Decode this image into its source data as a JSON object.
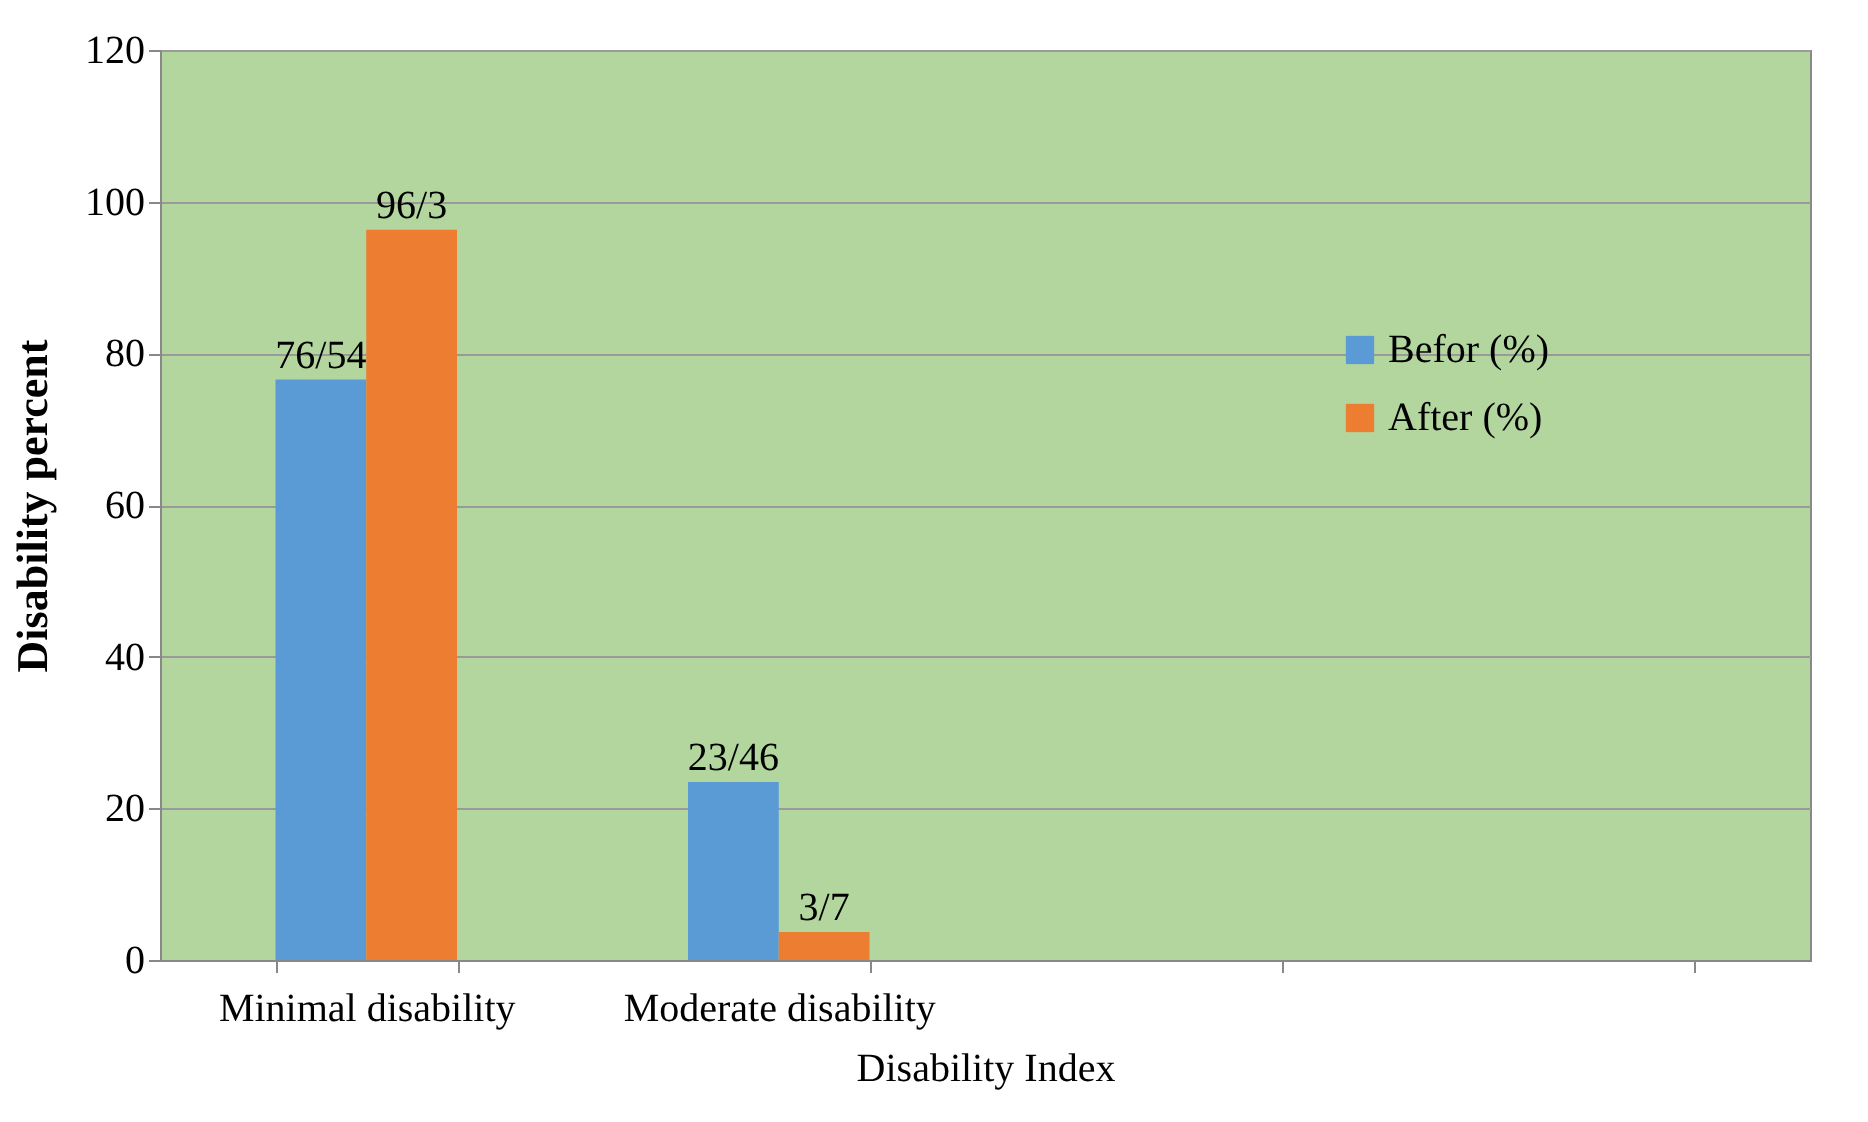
{
  "chart_data": {
    "type": "bar",
    "xlabel": "Disability Index",
    "ylabel": "Disability percent",
    "categories": [
      "Minimal disability",
      "Moderate disability",
      null,
      null
    ],
    "series": [
      {
        "name": "Befor (%)",
        "color": "#5b9bd5",
        "values": [
          76.54,
          23.46,
          null,
          null
        ],
        "value_labels": [
          "76/54",
          "23/46",
          null,
          null
        ]
      },
      {
        "name": "After (%)",
        "color": "#ed7d31",
        "values": [
          96.3,
          3.7,
          null,
          null
        ],
        "value_labels": [
          "96/3",
          "3/7",
          null,
          null
        ]
      }
    ],
    "ylim": [
      0,
      120
    ],
    "yticks": [
      0,
      20,
      40,
      60,
      80,
      100,
      120
    ],
    "grid": "y",
    "legend": "right"
  }
}
